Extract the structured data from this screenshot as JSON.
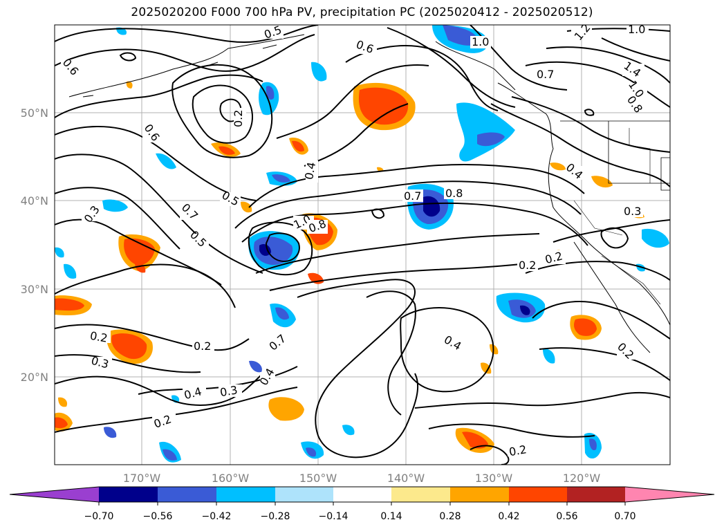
{
  "title": "2025020200 F000 700 hPa PV, precipitation PC (2025020412 - 2025020512)",
  "lat_ticks": [
    "50°N",
    "40°N",
    "30°N",
    "20°N"
  ],
  "lon_ticks": [
    "170°W",
    "160°W",
    "150°W",
    "140°W",
    "130°W",
    "120°W"
  ],
  "colorbar": {
    "ticks": [
      "−0.70",
      "−0.56",
      "−0.42",
      "−0.28",
      "−0.14",
      "0.14",
      "0.28",
      "0.42",
      "0.56",
      "0.70"
    ],
    "colors": [
      "#9a3fd0",
      "#00008b",
      "#3a5bd6",
      "#00bfff",
      "#aee3fb",
      "#ffffff",
      "#fce98c",
      "#ffa500",
      "#ff4500",
      "#b22222",
      "#ff85b0"
    ]
  },
  "contour_labels": [
    "0.6",
    "0.5",
    "0.6",
    "1.2",
    "1.0",
    "1.0",
    "1.4",
    "1.0",
    "0.8",
    "0.7",
    "0.2",
    "0.6",
    "0.4",
    "0.7",
    "0.8",
    "0.3",
    "0.5",
    "0.7",
    "0.5",
    "1.0",
    "0.8",
    "0.4",
    "0.2",
    "0.2",
    "0.3",
    "0.4",
    "0.2",
    "0.2",
    "0.7",
    "0.2",
    "0.3",
    "0.4",
    "0.3",
    "0.2",
    "0.4",
    "0.2"
  ]
}
